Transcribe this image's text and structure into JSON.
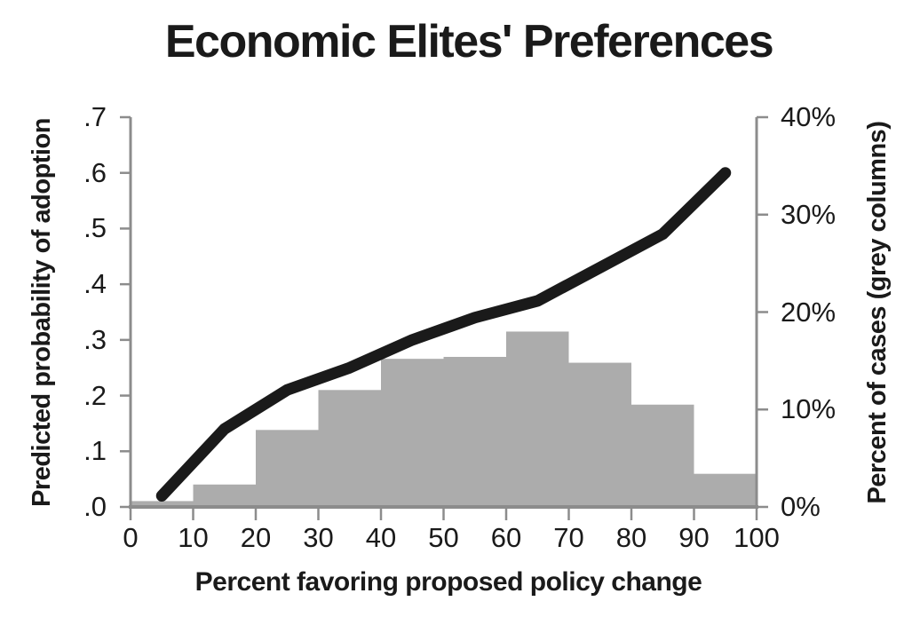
{
  "title": "Economic Elites' Preferences",
  "chart_data": {
    "type": "line",
    "title": "Economic Elites' Preferences",
    "xlabel": "Percent favoring proposed policy change",
    "ylabel_left": "Predicted probability of adoption",
    "ylabel_right": "Percent of cases (grey columns)",
    "x_range": [
      0,
      100
    ],
    "y_left_range": [
      0,
      0.7
    ],
    "y_right_range": [
      0,
      40
    ],
    "x_tick_labels": [
      "0",
      "10",
      "20",
      "30",
      "40",
      "50",
      "60",
      "70",
      "80",
      "90",
      "100"
    ],
    "y_left_tick_labels": [
      ".0",
      ".1",
      ".2",
      ".3",
      ".4",
      ".5",
      ".6",
      ".7"
    ],
    "y_right_tick_labels": [
      "0%",
      "10%",
      "20%",
      "30%",
      "40%"
    ],
    "grid": false,
    "legend": "none",
    "series": [
      {
        "name": "Predicted probability of adoption (dark line, left axis)",
        "type": "line",
        "axis": "left",
        "color": "#1a1a1a",
        "stroke_width": 13,
        "x": [
          5,
          15,
          25,
          35,
          45,
          55,
          65,
          75,
          85,
          95
        ],
        "y": [
          0.02,
          0.14,
          0.21,
          0.25,
          0.3,
          0.34,
          0.37,
          0.43,
          0.49,
          0.6
        ]
      },
      {
        "name": "Percent of cases (grey columns, right axis)",
        "type": "bar",
        "axis": "right",
        "color": "#acacac",
        "bin_edges": [
          0,
          10,
          20,
          30,
          40,
          50,
          60,
          70,
          80,
          90,
          100
        ],
        "values": [
          0.6,
          2.3,
          7.9,
          12.0,
          15.2,
          15.4,
          18.0,
          14.8,
          10.5,
          3.4
        ]
      }
    ]
  },
  "colors": {
    "background": "#ffffff",
    "axis": "#8c8c8c",
    "text": "#1a1a1a",
    "bar": "#acacac",
    "line": "#1a1a1a"
  }
}
